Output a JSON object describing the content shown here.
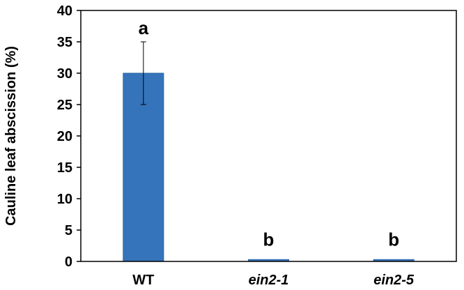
{
  "chart_data": {
    "type": "bar",
    "categories": [
      "WT",
      "ein2-1",
      "ein2-5"
    ],
    "category_italic": [
      false,
      true,
      true
    ],
    "values": [
      30,
      0.3,
      0.3
    ],
    "errors": [
      5,
      0,
      0
    ],
    "significance": [
      "a",
      "b",
      "b"
    ],
    "title": "",
    "xlabel": "",
    "ylabel": "Cauline leaf abscission (%)",
    "ylim": [
      0,
      40
    ],
    "yticks": [
      0,
      5,
      10,
      15,
      20,
      25,
      30,
      35,
      40
    ],
    "grid": false,
    "bar_color": "#3574BA",
    "bar_edge_color": "#2A64A6"
  }
}
